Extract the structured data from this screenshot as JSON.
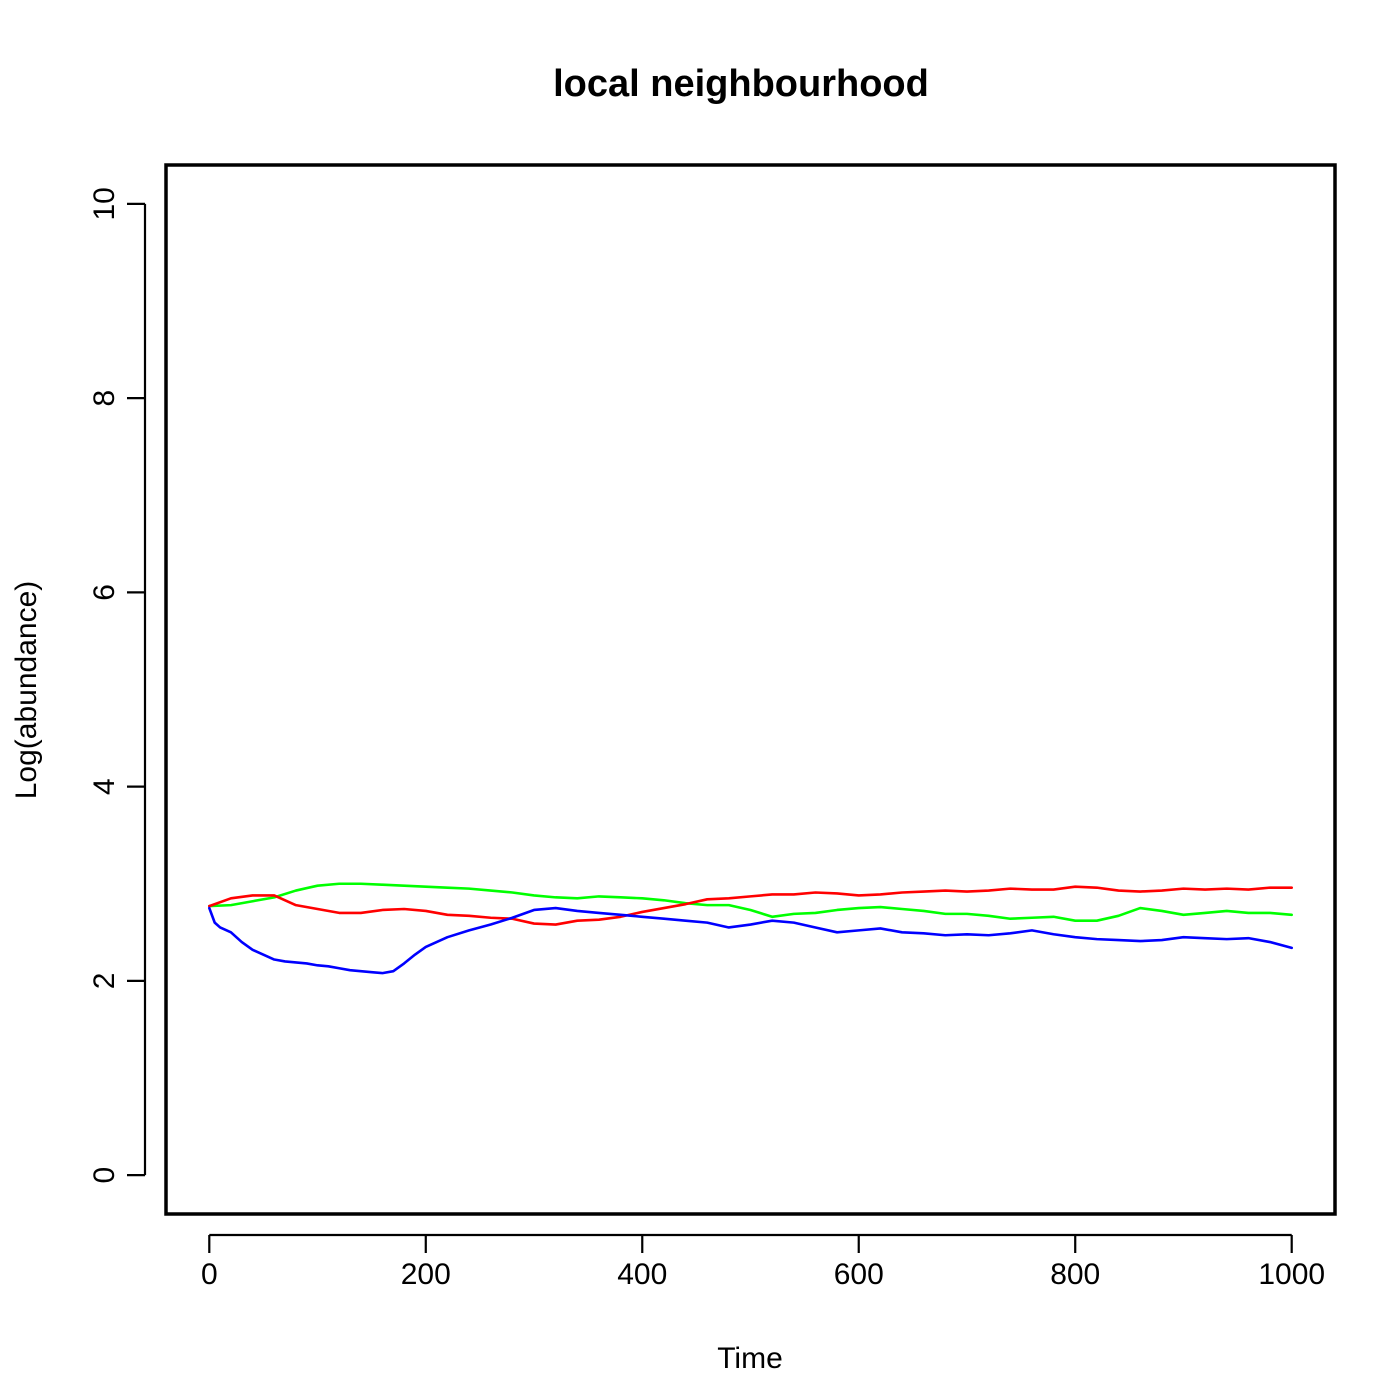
{
  "chart_data": {
    "type": "line",
    "title": "local neighbourhood",
    "xlabel": "Time",
    "ylabel": "Log(abundance)",
    "xlim": [
      -40,
      1040
    ],
    "ylim": [
      -0.4,
      10.4
    ],
    "xticks": [
      0,
      200,
      400,
      600,
      800,
      1000
    ],
    "yticks": [
      0,
      2,
      4,
      6,
      8,
      10
    ],
    "xtick_labels": [
      "0",
      "200",
      "400",
      "600",
      "800",
      "1000"
    ],
    "ytick_labels": [
      "0",
      "2",
      "4",
      "6",
      "8",
      "10"
    ],
    "grid": false,
    "legend": "none",
    "series": [
      {
        "color": "#00ff00",
        "x": [
          0,
          20,
          40,
          60,
          80,
          100,
          120,
          140,
          160,
          180,
          200,
          220,
          240,
          260,
          280,
          300,
          320,
          340,
          360,
          380,
          400,
          420,
          440,
          460,
          480,
          500,
          520,
          540,
          560,
          580,
          600,
          620,
          640,
          660,
          680,
          700,
          720,
          740,
          760,
          780,
          800,
          820,
          840,
          860,
          880,
          900,
          920,
          940,
          960,
          980,
          1000
        ],
        "y": [
          2.77,
          2.78,
          2.82,
          2.86,
          2.93,
          2.98,
          3.0,
          3.0,
          2.99,
          2.98,
          2.97,
          2.96,
          2.95,
          2.93,
          2.91,
          2.88,
          2.86,
          2.85,
          2.87,
          2.86,
          2.85,
          2.83,
          2.8,
          2.78,
          2.78,
          2.73,
          2.66,
          2.69,
          2.7,
          2.73,
          2.75,
          2.76,
          2.74,
          2.72,
          2.69,
          2.69,
          2.67,
          2.64,
          2.65,
          2.66,
          2.62,
          2.62,
          2.67,
          2.75,
          2.72,
          2.68,
          2.7,
          2.72,
          2.7,
          2.7,
          2.68
        ]
      },
      {
        "color": "#ff0000",
        "x": [
          0,
          20,
          40,
          60,
          80,
          100,
          120,
          140,
          160,
          180,
          200,
          220,
          240,
          260,
          280,
          300,
          320,
          340,
          360,
          380,
          400,
          420,
          440,
          460,
          480,
          500,
          520,
          540,
          560,
          580,
          600,
          620,
          640,
          660,
          680,
          700,
          720,
          740,
          760,
          780,
          800,
          820,
          840,
          860,
          880,
          900,
          920,
          940,
          960,
          980,
          1000
        ],
        "y": [
          2.77,
          2.85,
          2.88,
          2.88,
          2.78,
          2.74,
          2.7,
          2.7,
          2.73,
          2.74,
          2.72,
          2.68,
          2.67,
          2.65,
          2.64,
          2.59,
          2.58,
          2.62,
          2.63,
          2.66,
          2.71,
          2.75,
          2.79,
          2.84,
          2.85,
          2.87,
          2.89,
          2.89,
          2.91,
          2.9,
          2.88,
          2.89,
          2.91,
          2.92,
          2.93,
          2.92,
          2.93,
          2.95,
          2.94,
          2.94,
          2.97,
          2.96,
          2.93,
          2.92,
          2.93,
          2.95,
          2.94,
          2.95,
          2.94,
          2.96,
          2.96
        ]
      },
      {
        "color": "#0000ff",
        "x": [
          0,
          5,
          10,
          20,
          30,
          40,
          50,
          60,
          70,
          80,
          90,
          100,
          110,
          120,
          130,
          140,
          150,
          160,
          170,
          180,
          190,
          200,
          210,
          220,
          240,
          260,
          280,
          300,
          320,
          340,
          360,
          380,
          400,
          420,
          440,
          460,
          480,
          500,
          520,
          540,
          560,
          580,
          600,
          620,
          640,
          660,
          680,
          700,
          720,
          740,
          760,
          780,
          800,
          820,
          840,
          860,
          880,
          900,
          920,
          940,
          960,
          980,
          1000
        ],
        "y": [
          2.75,
          2.6,
          2.55,
          2.5,
          2.4,
          2.32,
          2.27,
          2.22,
          2.2,
          2.19,
          2.18,
          2.16,
          2.15,
          2.13,
          2.11,
          2.1,
          2.09,
          2.08,
          2.1,
          2.18,
          2.27,
          2.35,
          2.4,
          2.45,
          2.52,
          2.58,
          2.65,
          2.73,
          2.75,
          2.72,
          2.7,
          2.68,
          2.66,
          2.64,
          2.62,
          2.6,
          2.55,
          2.58,
          2.62,
          2.6,
          2.55,
          2.5,
          2.52,
          2.54,
          2.5,
          2.49,
          2.47,
          2.48,
          2.47,
          2.49,
          2.52,
          2.48,
          2.45,
          2.43,
          2.42,
          2.41,
          2.42,
          2.45,
          2.44,
          2.43,
          2.44,
          2.4,
          2.34
        ]
      }
    ]
  }
}
